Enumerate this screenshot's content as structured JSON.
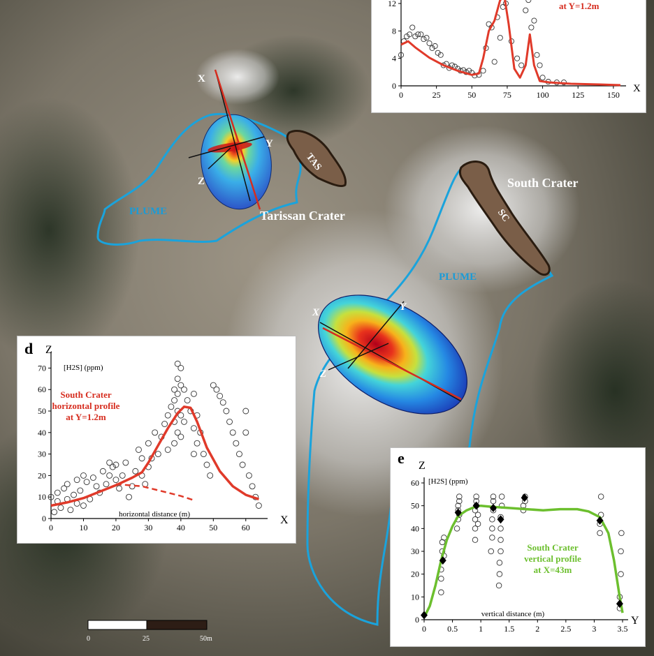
{
  "map": {
    "labels": {
      "tarissan": "Tarissan Crater",
      "south_crater": "South Crater",
      "plume_left": "PLUME",
      "plume_right": "PLUME",
      "tas": "TAS",
      "sc": "SC"
    },
    "axes_left": {
      "x": "X",
      "y": "Y",
      "z": "Z"
    },
    "axes_center": {
      "x": "X",
      "y": "Y",
      "z": "Z"
    },
    "scale_bar": {
      "ticks": [
        "0",
        "25",
        "50m"
      ]
    },
    "colors": {
      "plume_outline": "#1aa3dc",
      "crater_fill": "#7a5e48",
      "crater_stroke": "#2a1c10",
      "label_white": "#ffffff",
      "label_blue": "#1a9bd7"
    }
  },
  "panels": {
    "top": {
      "subtitle_partial": "at Y=1.2m",
      "x_axis_letter": "X"
    },
    "d": {
      "letter": "d",
      "z_axis_letter": "Z",
      "x_axis_letter": "X",
      "unit_label": "[H2S] (ppm)",
      "title_lines": [
        "South Crater",
        "horizontal profile",
        "at Y=1.2m"
      ],
      "xlabel": "horizontal distance (m)"
    },
    "e": {
      "letter": "e",
      "z_axis_letter": "Z",
      "x_axis_letter": "Y",
      "unit_label": "[H2S] (ppm)",
      "title_lines": [
        "South Crater",
        "vertical profile",
        "at X=43m"
      ],
      "xlabel": "vertical distance (m)"
    }
  },
  "chart_data": [
    {
      "type": "scatter",
      "panel": "top",
      "xlabel": "X",
      "xlim": [
        0,
        155
      ],
      "ylim": [
        0,
        12
      ],
      "x_ticks": [
        0,
        25,
        50,
        75,
        100,
        125,
        150
      ],
      "y_ticks": [
        0,
        4,
        8,
        12
      ],
      "line_color": "#e03a2a",
      "model_line": {
        "x": [
          0,
          5,
          10,
          20,
          30,
          40,
          50,
          55,
          58,
          62,
          66,
          70,
          73,
          76,
          80,
          84,
          88,
          91,
          94,
          98,
          105,
          120,
          140,
          155
        ],
        "y": [
          6,
          6.5,
          5.6,
          4.1,
          3,
          2.2,
          1.6,
          1.8,
          4,
          8,
          9.5,
          12.5,
          13.5,
          9,
          2.5,
          1.2,
          3,
          7.5,
          3,
          0.7,
          0.5,
          0.3,
          0.2,
          0.1
        ]
      },
      "observations": {
        "x": [
          0,
          2,
          4,
          6,
          8,
          10,
          12,
          14,
          16,
          18,
          20,
          22,
          24,
          26,
          28,
          30,
          32,
          34,
          36,
          38,
          40,
          42,
          44,
          46,
          48,
          50,
          52,
          55,
          58,
          60,
          62,
          64,
          66,
          68,
          70,
          72,
          74,
          78,
          82,
          85,
          88,
          90,
          92,
          94,
          96,
          98,
          100,
          104,
          110,
          115
        ],
        "y": [
          4.5,
          6.5,
          7.2,
          7.5,
          8.5,
          7.2,
          7.5,
          7.5,
          6.8,
          7.0,
          6.2,
          5.5,
          5.8,
          4.8,
          4.5,
          3.0,
          3.2,
          2.6,
          3.0,
          2.8,
          2.5,
          2.2,
          2.3,
          2.0,
          2.2,
          1.9,
          1.5,
          1.6,
          2.2,
          5.5,
          9,
          8.5,
          3.5,
          10,
          7,
          11.5,
          12,
          6.5,
          4,
          3,
          11,
          12.5,
          8.5,
          9.5,
          4.5,
          3.0,
          1.2,
          0.6,
          0.5,
          0.5
        ]
      }
    },
    {
      "type": "scatter",
      "panel": "d",
      "xlabel": "horizontal distance (m)",
      "ylabel": "[H2S] (ppm)",
      "xlim": [
        0,
        65
      ],
      "ylim": [
        0,
        75
      ],
      "x_ticks": [
        0,
        10,
        20,
        30,
        40,
        50,
        60
      ],
      "y_ticks": [
        0,
        10,
        20,
        30,
        40,
        50,
        60,
        70
      ],
      "line_color": "#e03a2a",
      "model_line": {
        "x": [
          0,
          5,
          10,
          15,
          20,
          25,
          28,
          30,
          33,
          36,
          39,
          41,
          43,
          45,
          48,
          52,
          56,
          60,
          64
        ],
        "y": [
          6,
          7.5,
          9.5,
          12.5,
          15.5,
          19,
          21.5,
          26,
          34,
          42,
          49,
          52,
          51.5,
          45,
          33,
          22,
          15,
          11,
          9
        ]
      },
      "dashed_line": {
        "x": [
          20,
          24,
          28,
          32,
          36,
          40,
          44
        ],
        "y": [
          16,
          15.5,
          15,
          13.5,
          12,
          10.5,
          8.5
        ]
      },
      "observations": {
        "x": [
          0,
          1,
          2,
          2,
          3,
          4,
          5,
          5,
          6,
          7,
          8,
          8,
          9,
          10,
          10,
          11,
          12,
          13,
          14,
          15,
          16,
          17,
          18,
          18,
          19,
          20,
          20,
          21,
          22,
          23,
          24,
          25,
          26,
          27,
          28,
          28,
          29,
          30,
          30,
          31,
          32,
          33,
          34,
          35,
          36,
          36,
          37,
          38,
          38,
          38,
          38,
          39,
          39,
          39,
          39,
          39,
          40,
          40,
          40,
          40,
          41,
          41,
          42,
          43,
          44,
          44,
          44,
          45,
          45,
          46,
          47,
          48,
          49,
          50,
          51,
          52,
          53,
          54,
          55,
          56,
          57,
          58,
          59,
          60,
          60,
          61,
          62,
          63,
          64
        ],
        "y": [
          10,
          3,
          12,
          8,
          5,
          14,
          9,
          16,
          4,
          11,
          7,
          18,
          13,
          20,
          6,
          17,
          9,
          19,
          15,
          12,
          22,
          16,
          26,
          20,
          24,
          25,
          18,
          14,
          20,
          26,
          10,
          15,
          22,
          32,
          20,
          28,
          16,
          35,
          24,
          28,
          40,
          30,
          38,
          44,
          48,
          32,
          52,
          60,
          45,
          35,
          55,
          72,
          65,
          58,
          50,
          40,
          70,
          62,
          48,
          38,
          60,
          45,
          55,
          50,
          58,
          42,
          30,
          48,
          35,
          40,
          30,
          25,
          20,
          62,
          60,
          57,
          54,
          50,
          45,
          40,
          35,
          30,
          25,
          50,
          40,
          20,
          15,
          10,
          6
        ]
      }
    },
    {
      "type": "scatter",
      "panel": "e",
      "xlabel": "vertical distance (m)",
      "ylabel": "[H2S] (ppm)",
      "xlim": [
        0,
        3.5
      ],
      "ylim": [
        0,
        60
      ],
      "x_ticks": [
        0,
        0.5,
        1,
        1.5,
        2,
        2.5,
        3,
        3.5
      ],
      "y_ticks": [
        0,
        10,
        20,
        30,
        40,
        50,
        60
      ],
      "line_color": "#6cbf2e",
      "model_line": {
        "x": [
          0,
          0.1,
          0.2,
          0.3,
          0.4,
          0.5,
          0.6,
          0.75,
          0.9,
          1.0,
          1.2,
          1.5,
          1.8,
          2.1,
          2.4,
          2.7,
          2.9,
          3.1,
          3.25,
          3.35,
          3.45,
          3.5
        ],
        "y": [
          1,
          6,
          15,
          26,
          35,
          41,
          45.5,
          48,
          49.5,
          50,
          49.5,
          49,
          48.5,
          48,
          48.5,
          48.5,
          47.5,
          45,
          38,
          26,
          10,
          3
        ]
      },
      "mean_points": {
        "x": [
          0,
          0.33,
          0.6,
          0.92,
          1.22,
          1.35,
          1.77,
          3.1,
          3.45
        ],
        "y": [
          2,
          26,
          47,
          50,
          49,
          44,
          53.5,
          43.5,
          7
        ]
      },
      "observations": {
        "x": [
          0.3,
          0.3,
          0.3,
          0.32,
          0.32,
          0.35,
          0.35,
          0.58,
          0.6,
          0.6,
          0.6,
          0.62,
          0.62,
          0.62,
          0.9,
          0.9,
          0.9,
          0.9,
          0.92,
          0.92,
          0.92,
          0.95,
          0.95,
          1.18,
          1.2,
          1.2,
          1.2,
          1.22,
          1.22,
          1.22,
          1.32,
          1.33,
          1.33,
          1.35,
          1.35,
          1.35,
          1.35,
          1.37,
          1.37,
          1.75,
          1.75,
          1.78,
          1.78,
          3.1,
          3.1,
          3.12,
          3.12,
          3.45,
          3.45,
          3.47,
          3.47,
          3.48
        ],
        "y": [
          12,
          18,
          22,
          30,
          34,
          36,
          28,
          40,
          44,
          48,
          50,
          52,
          54,
          46,
          35,
          40,
          44,
          48,
          50,
          52,
          54,
          42,
          46,
          30,
          36,
          40,
          44,
          48,
          52,
          54,
          15,
          20,
          25,
          30,
          35,
          40,
          45,
          50,
          54,
          48,
          50,
          52,
          54,
          38,
          42,
          46,
          54,
          5,
          10,
          20,
          30,
          38
        ]
      }
    }
  ]
}
